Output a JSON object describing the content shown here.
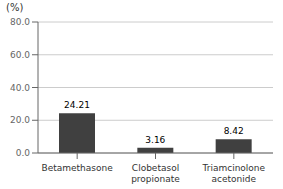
{
  "chart_data": {
    "type": "bar",
    "ylabel": "(%)",
    "categories": [
      "Betamethasone",
      "Clobetasol\npropionate",
      "Triamcinolone\nacetonide"
    ],
    "values": [
      24.21,
      3.16,
      8.42
    ],
    "color": "#404040",
    "ylim": [
      0,
      80.0
    ],
    "yticks": [
      {
        "value": 0.0,
        "label": "0.0"
      },
      {
        "value": 20.0,
        "label": "20.0"
      },
      {
        "value": 40.0,
        "label": "40.0"
      },
      {
        "value": 60.0,
        "label": "60.0"
      },
      {
        "value": 80.0,
        "label": "80.0"
      }
    ],
    "grid": true,
    "data_labels": true
  }
}
